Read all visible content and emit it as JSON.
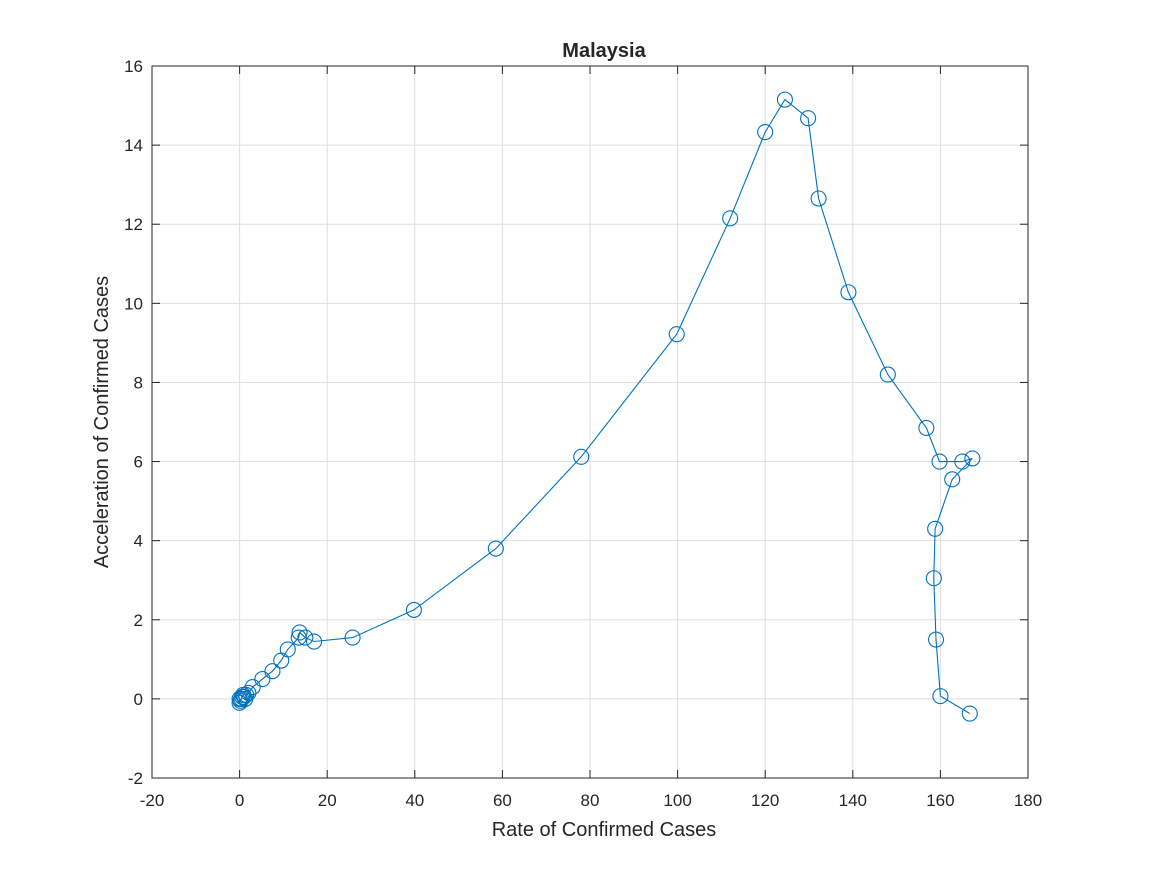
{
  "chart_data": {
    "type": "line",
    "title": "Malaysia",
    "xlabel": "Rate of Confirmed Cases",
    "ylabel": "Acceleration of Confirmed Cases",
    "xlim": [
      -20,
      180
    ],
    "ylim": [
      -2,
      16
    ],
    "xticks": [
      -20,
      0,
      20,
      40,
      60,
      80,
      100,
      120,
      140,
      160,
      180
    ],
    "yticks": [
      -2,
      0,
      2,
      4,
      6,
      8,
      10,
      12,
      14,
      16
    ],
    "xtick_labels": [
      "-20",
      "0",
      "20",
      "40",
      "60",
      "80",
      "100",
      "120",
      "140",
      "160",
      "180"
    ],
    "ytick_labels": [
      "-2",
      "0",
      "2",
      "4",
      "6",
      "8",
      "10",
      "12",
      "14",
      "16"
    ],
    "grid": true,
    "marker": "circle",
    "series_color": "#0072bd",
    "points": [
      {
        "x": 0.0,
        "y": 0.0
      },
      {
        "x": 0.0,
        "y": -0.1
      },
      {
        "x": 0.2,
        "y": -0.05
      },
      {
        "x": 0.4,
        "y": 0.0
      },
      {
        "x": 0.6,
        "y": 0.05
      },
      {
        "x": 0.8,
        "y": 0.1
      },
      {
        "x": 1.0,
        "y": 0.05
      },
      {
        "x": 1.3,
        "y": 0.0
      },
      {
        "x": 1.5,
        "y": 0.1
      },
      {
        "x": 2.0,
        "y": 0.15
      },
      {
        "x": 3.0,
        "y": 0.3
      },
      {
        "x": 5.2,
        "y": 0.5
      },
      {
        "x": 7.5,
        "y": 0.7
      },
      {
        "x": 9.5,
        "y": 0.97
      },
      {
        "x": 11.0,
        "y": 1.25
      },
      {
        "x": 13.5,
        "y": 1.55
      },
      {
        "x": 13.7,
        "y": 1.68
      },
      {
        "x": 15.0,
        "y": 1.55
      },
      {
        "x": 17.0,
        "y": 1.45
      },
      {
        "x": 25.8,
        "y": 1.55
      },
      {
        "x": 39.8,
        "y": 2.25
      },
      {
        "x": 58.5,
        "y": 3.8
      },
      {
        "x": 78.0,
        "y": 6.12
      },
      {
        "x": 99.8,
        "y": 9.22
      },
      {
        "x": 112.0,
        "y": 12.15
      },
      {
        "x": 120.0,
        "y": 14.33
      },
      {
        "x": 124.5,
        "y": 15.15
      },
      {
        "x": 129.8,
        "y": 14.68
      },
      {
        "x": 132.2,
        "y": 12.65
      },
      {
        "x": 139.0,
        "y": 10.28
      },
      {
        "x": 148.0,
        "y": 8.2
      },
      {
        "x": 156.8,
        "y": 6.85
      },
      {
        "x": 159.8,
        "y": 6.0
      },
      {
        "x": 165.0,
        "y": 6.0
      },
      {
        "x": 167.3,
        "y": 6.08
      },
      {
        "x": 162.7,
        "y": 5.55
      },
      {
        "x": 158.8,
        "y": 4.3
      },
      {
        "x": 158.5,
        "y": 3.05
      },
      {
        "x": 159.0,
        "y": 1.5
      },
      {
        "x": 160.0,
        "y": 0.07
      },
      {
        "x": 166.7,
        "y": -0.37
      }
    ]
  }
}
